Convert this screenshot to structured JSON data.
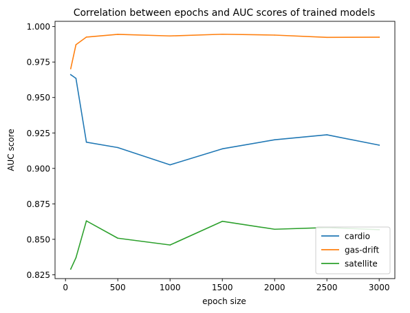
{
  "chart_data": {
    "type": "line",
    "title": "Correlation between epochs and AUC scores of trained models",
    "xlabel": "epoch size",
    "ylabel": "AUC score",
    "x": [
      50,
      100,
      200,
      500,
      1000,
      1500,
      2000,
      2500,
      3000
    ],
    "xlim": [
      -100,
      3150
    ],
    "ylim": [
      0.8223,
      1.0037
    ],
    "xticks": [
      0,
      500,
      1000,
      1500,
      2000,
      2500,
      3000
    ],
    "xtick_labels": [
      "0",
      "500",
      "1000",
      "1500",
      "2000",
      "2500",
      "3000"
    ],
    "yticks": [
      0.825,
      0.85,
      0.875,
      0.9,
      0.925,
      0.95,
      0.975,
      1.0
    ],
    "ytick_labels": [
      "0.825",
      "0.850",
      "0.875",
      "0.900",
      "0.925",
      "0.950",
      "0.975",
      "1.000"
    ],
    "grid": false,
    "legend_position": "lower-right",
    "series": [
      {
        "name": "cardio",
        "color": "#1f77b4",
        "values": [
          0.9661,
          0.9635,
          0.9185,
          0.9147,
          0.9025,
          0.9138,
          0.9202,
          0.9237,
          0.9164
        ]
      },
      {
        "name": "gas-drift",
        "color": "#ff7f0e",
        "values": [
          0.9703,
          0.9872,
          0.9926,
          0.9945,
          0.9934,
          0.9946,
          0.994,
          0.9924,
          0.9925
        ]
      },
      {
        "name": "satellite",
        "color": "#2ca02c",
        "values": [
          0.829,
          0.837,
          0.863,
          0.8508,
          0.846,
          0.8627,
          0.8571,
          0.8583,
          0.8568
        ]
      }
    ]
  }
}
